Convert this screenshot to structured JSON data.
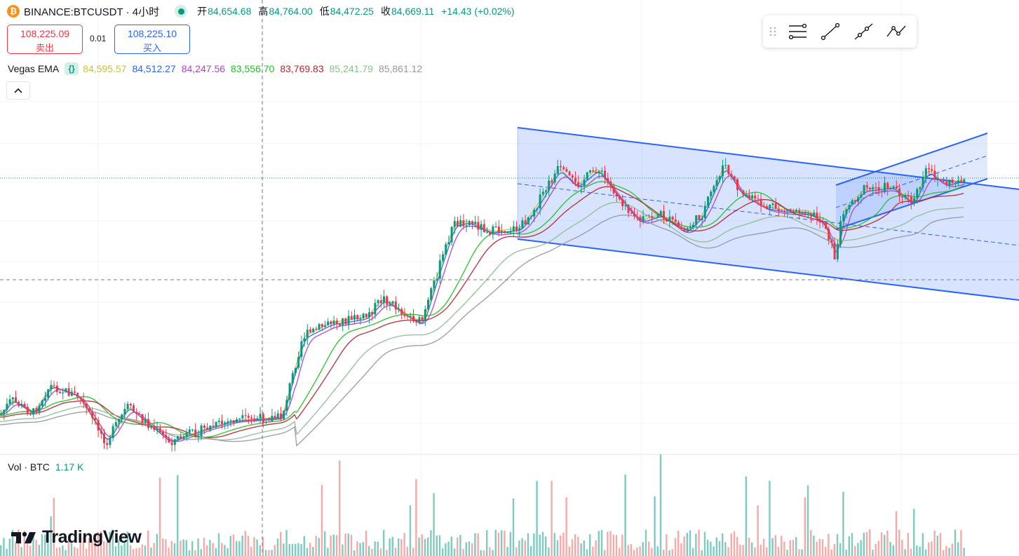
{
  "header": {
    "symbol": "BINANCE:BTCUSDT · 4小时",
    "coin_icon": "bitcoin-icon",
    "ohlc": [
      {
        "label": "开",
        "value": "84,654.68"
      },
      {
        "label": "高",
        "value": "84,764.00"
      },
      {
        "label": "低",
        "value": "84,472.25"
      },
      {
        "label": "收",
        "value": "84,669.11"
      }
    ],
    "change": "+14.43 (+0.02%)"
  },
  "trade": {
    "sell_price": "108,225.09",
    "sell_label": "卖出",
    "spread": "0.01",
    "buy_price": "108,225.10",
    "buy_label": "买入"
  },
  "indicator": {
    "name": "Vegas EMA",
    "icon": "braces-icon",
    "values": [
      {
        "value": "84,595.57",
        "color": "#c9c23a"
      },
      {
        "value": "84,512.27",
        "color": "#2962ff"
      },
      {
        "value": "84,247.56",
        "color": "#ab47bc"
      },
      {
        "value": "83,556.70",
        "color": "#22c022"
      },
      {
        "value": "83,769.83",
        "color": "#b22833"
      },
      {
        "value": "85,241.79",
        "color": "#8fbc8f"
      },
      {
        "value": "85,861.12",
        "color": "#9598a1"
      }
    ]
  },
  "volume": {
    "label": "Vol · BTC",
    "value": "1.17 K"
  },
  "drawing_toolbar": {
    "tools": [
      "grip-icon",
      "fib-retracement-icon",
      "trend-line-icon",
      "ray-icon",
      "path-icon"
    ]
  },
  "brand": {
    "name": "TradingView"
  },
  "colors": {
    "up": "#089981",
    "down": "#f23645",
    "channel": "#2962ff",
    "channel_fill": "#d6e0fb"
  }
}
